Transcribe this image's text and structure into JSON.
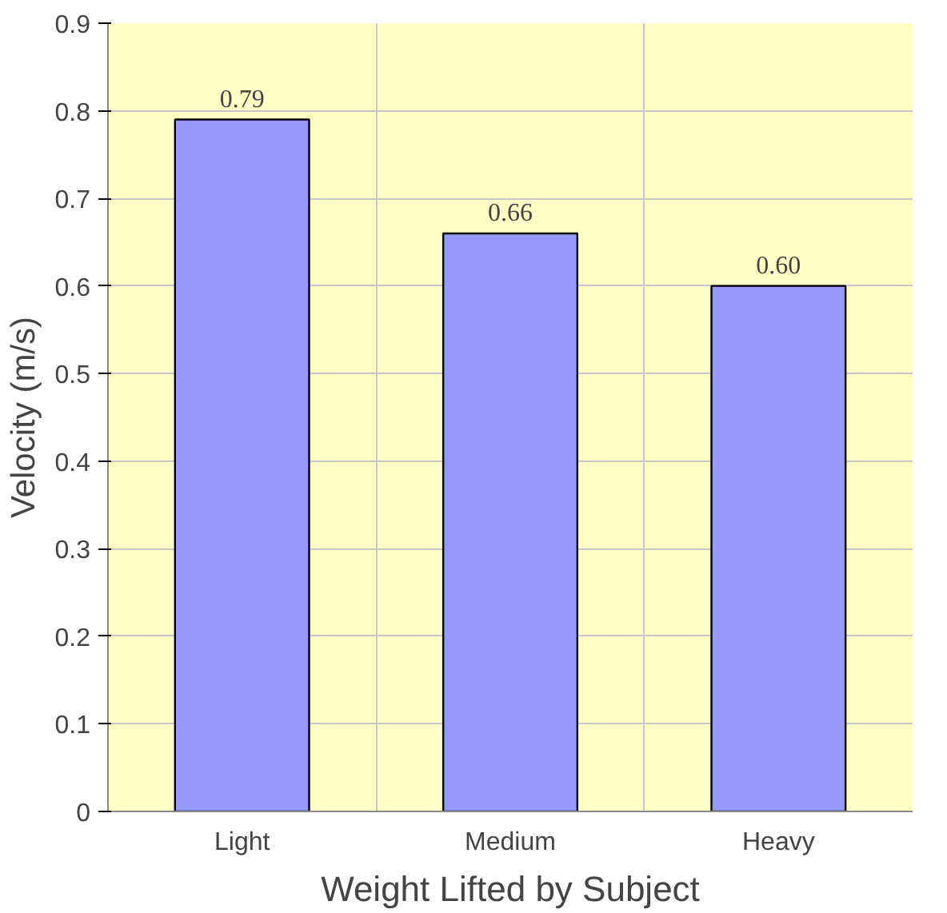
{
  "chart_data": {
    "type": "bar",
    "xlabel": "Weight Lifted by Subject",
    "ylabel": "Velocity (m/s)",
    "categories": [
      "Light",
      "Medium",
      "Heavy"
    ],
    "values": [
      0.79,
      0.66,
      0.6
    ],
    "value_labels": [
      "0.79",
      "0.66",
      "0.60"
    ],
    "color": "#9999ff",
    "ylim": [
      0,
      0.9
    ],
    "yticks": [
      {
        "value": 0,
        "label": "0"
      },
      0.1,
      0.2,
      0.3,
      0.4,
      0.5,
      0.6,
      0.7,
      0.8,
      0.9
    ],
    "grid": true
  }
}
